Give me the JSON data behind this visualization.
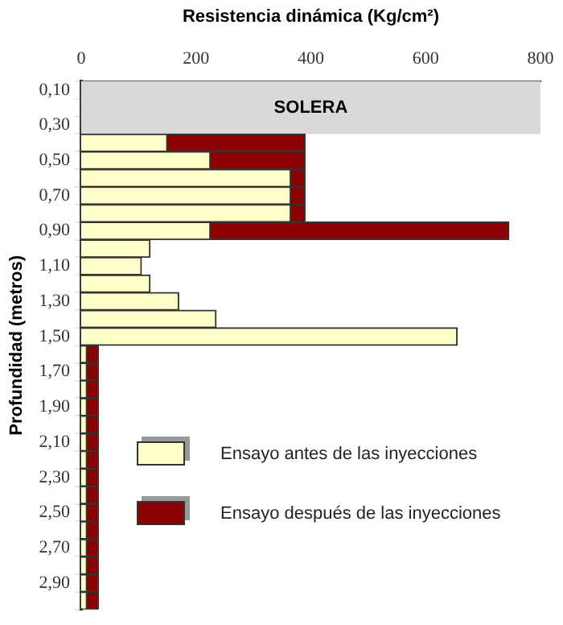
{
  "chart_data": {
    "type": "bar",
    "orientation": "horizontal",
    "stacked": true,
    "xlabel": "Resistencia dinámica (Kg/cm²)",
    "ylabel": "Profundidad (metros)",
    "categories": [
      "0,10",
      null,
      "0,30",
      null,
      "0,50",
      null,
      "0,70",
      null,
      "0,90",
      null,
      "1,10",
      null,
      "1,30",
      null,
      "1,50",
      null,
      "1,70",
      null,
      "1,90",
      null,
      "2,10",
      null,
      "2,30",
      null,
      "2,50",
      null,
      "2,70",
      null,
      "2,90",
      null
    ],
    "series": [
      {
        "name": "Ensayo antes de las inyecciones",
        "color": "#ffffcc",
        "values": [
          null,
          null,
          null,
          150,
          225,
          365,
          365,
          365,
          225,
          120,
          105,
          120,
          170,
          235,
          655,
          10,
          10,
          10,
          10,
          10,
          10,
          10,
          10,
          10,
          10,
          10,
          10,
          10,
          10,
          10
        ]
      },
      {
        "name": "Ensayo después de las inyecciones",
        "color": "#8b0000",
        "values": [
          null,
          null,
          null,
          240,
          165,
          25,
          25,
          25,
          520,
          null,
          null,
          null,
          null,
          null,
          null,
          20,
          20,
          20,
          20,
          20,
          20,
          20,
          20,
          20,
          20,
          20,
          20,
          20,
          20,
          20
        ]
      }
    ],
    "xlim": [
      0,
      800
    ],
    "xticks": [
      0,
      200,
      400,
      600,
      800
    ],
    "bands": [
      {
        "axis": "y",
        "from": "0,10",
        "to": "0,30",
        "label": "SOLERA",
        "color": "#d9d9d9"
      }
    ],
    "grid": false,
    "legend": "bottom right"
  }
}
